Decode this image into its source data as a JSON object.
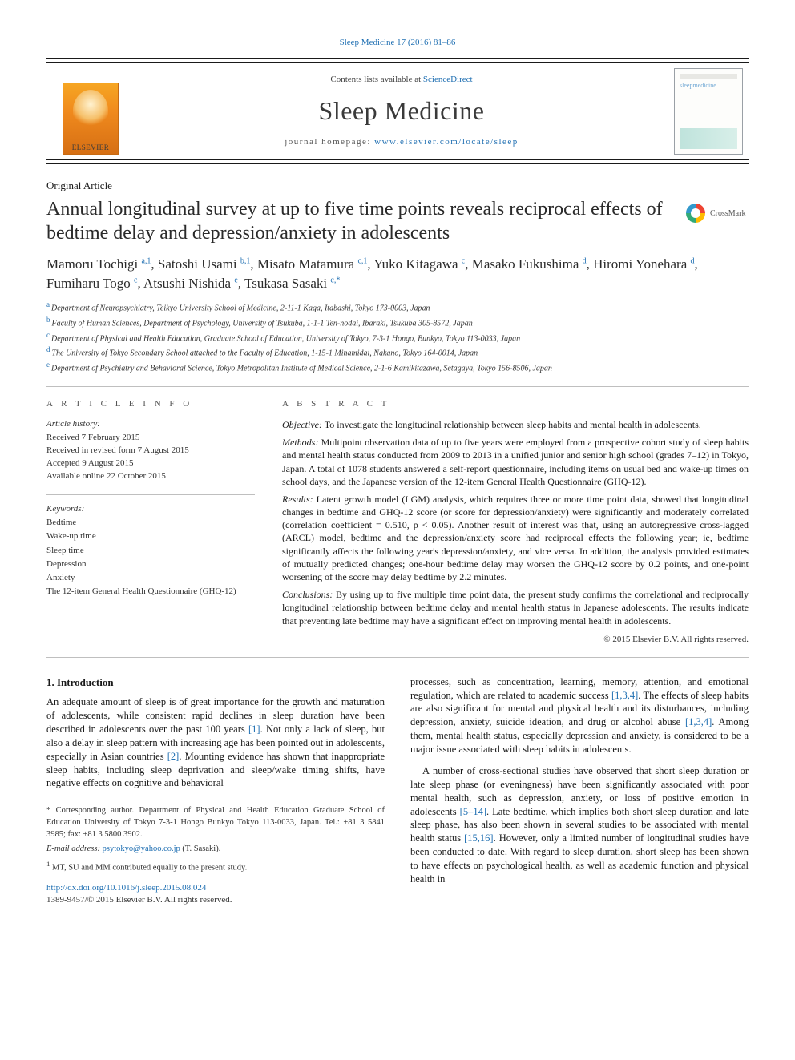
{
  "colors": {
    "link": "#1f6fb2",
    "text": "#1a1a1a",
    "masthead_border": "#1a1a1a",
    "logo_gradient_top": "#f6a623",
    "logo_gradient_bottom": "#d66f14",
    "rule": "#bfbfbf"
  },
  "typography": {
    "body_family": "Times New Roman / Charis serif",
    "title_fontsize_pt": 18,
    "journal_title_fontsize_pt": 24,
    "body_fontsize_pt": 9.5,
    "abstract_fontsize_pt": 9
  },
  "running_head": "Sleep Medicine 17 (2016) 81–86",
  "masthead": {
    "contents_line_pre": "Contents lists available at ",
    "contents_link": "ScienceDirect",
    "journal_title": "Sleep Medicine",
    "homepage_pre": "journal homepage: ",
    "homepage_link": "www.elsevier.com/locate/sleep",
    "publisher_brand": "ELSEVIER",
    "cover_caption": "sleepmedicine"
  },
  "article_type": "Original Article",
  "title": "Annual longitudinal survey at up to five time points reveals reciprocal effects of bedtime delay and depression/anxiety in adolescents",
  "crossmark_label": "CrossMark",
  "authors_html": "Mamoru Tochigi <sup>a,1</sup>, Satoshi Usami <sup>b,1</sup>, Misato Matamura <sup>c,1</sup>, Yuko Kitagawa <sup>c</sup>, Masako Fukushima <sup>d</sup>, Hiromi Yonehara <sup>d</sup>, Fumiharu Togo <sup>c</sup>, Atsushi Nishida <sup>e</sup>, Tsukasa Sasaki <sup>c,*</sup>",
  "affiliations": [
    {
      "label": "a",
      "text": "Department of Neuropsychiatry, Teikyo University School of Medicine, 2-11-1 Kaga, Itabashi, Tokyo 173-0003, Japan"
    },
    {
      "label": "b",
      "text": "Faculty of Human Sciences, Department of Psychology, University of Tsukuba, 1-1-1 Ten-nodai, Ibaraki, Tsukuba 305-8572, Japan"
    },
    {
      "label": "c",
      "text": "Department of Physical and Health Education, Graduate School of Education, University of Tokyo, 7-3-1 Hongo, Bunkyo, Tokyo 113-0033, Japan"
    },
    {
      "label": "d",
      "text": "The University of Tokyo Secondary School attached to the Faculty of Education, 1-15-1 Minamidai, Nakano, Tokyo 164-0014, Japan"
    },
    {
      "label": "e",
      "text": "Department of Psychiatry and Behavioral Science, Tokyo Metropolitan Institute of Medical Science, 2-1-6 Kamikitazawa, Setagaya, Tokyo 156-8506, Japan"
    }
  ],
  "article_info_heading": "A R T I C L E   I N F O",
  "abstract_heading": "A B S T R A C T",
  "history_heading": "Article history:",
  "history_lines": [
    "Received 7 February 2015",
    "Received in revised form 7 August 2015",
    "Accepted 9 August 2015",
    "Available online 22 October 2015"
  ],
  "keywords_heading": "Keywords:",
  "keywords": [
    "Bedtime",
    "Wake-up time",
    "Sleep time",
    "Depression",
    "Anxiety",
    "The 12-item General Health Questionnaire (GHQ-12)"
  ],
  "abstract": {
    "objective_label": "Objective:",
    "objective": " To investigate the longitudinal relationship between sleep habits and mental health in adolescents.",
    "methods_label": "Methods:",
    "methods": " Multipoint observation data of up to five years were employed from a prospective cohort study of sleep habits and mental health status conducted from 2009 to 2013 in a unified junior and senior high school (grades 7–12) in Tokyo, Japan. A total of 1078 students answered a self-report questionnaire, including items on usual bed and wake-up times on school days, and the Japanese version of the 12-item General Health Questionnaire (GHQ-12).",
    "results_label": "Results:",
    "results": " Latent growth model (LGM) analysis, which requires three or more time point data, showed that longitudinal changes in bedtime and GHQ-12 score (or score for depression/anxiety) were significantly and moderately correlated (correlation coefficient = 0.510, p < 0.05). Another result of interest was that, using an autoregressive cross-lagged (ARCL) model, bedtime and the depression/anxiety score had reciprocal effects the following year; ie, bedtime significantly affects the following year's depression/anxiety, and vice versa. In addition, the analysis provided estimates of mutually predicted changes; one-hour bedtime delay may worsen the GHQ-12 score by 0.2 points, and one-point worsening of the score may delay bedtime by 2.2 minutes.",
    "conclusions_label": "Conclusions:",
    "conclusions": " By using up to five multiple time point data, the present study confirms the correlational and reciprocally longitudinal relationship between bedtime delay and mental health status in Japanese adolescents. The results indicate that preventing late bedtime may have a significant effect on improving mental health in adolescents.",
    "copyright": "© 2015 Elsevier B.V. All rights reserved."
  },
  "intro_heading": "1. Introduction",
  "intro_para1_a": "An adequate amount of sleep is of great importance for the growth and maturation of adolescents, while consistent rapid declines in sleep duration have been described in adolescents over the past 100 years ",
  "intro_para1_ref1": "[1]",
  "intro_para1_b": ". Not only a lack of sleep, but also a delay in sleep pattern with increasing age has been pointed out in adolescents, especially in Asian countries ",
  "intro_para1_ref2": "[2]",
  "intro_para1_c": ". Mounting evidence has shown that inappropriate sleep habits, including sleep deprivation and sleep/wake timing shifts, have negative effects on cognitive and behavioral",
  "intro_para2_a": "processes, such as concentration, learning, memory, attention, and emotional regulation, which are related to academic success ",
  "intro_para2_ref1": "[1,3,4]",
  "intro_para2_b": ". The effects of sleep habits are also significant for mental and physical health and its disturbances, including depression, anxiety, suicide ideation, and drug or alcohol abuse ",
  "intro_para2_ref2": "[1,3,4]",
  "intro_para2_c": ". Among them, mental health status, especially depression and anxiety, is considered to be a major issue associated with sleep habits in adolescents.",
  "intro_para3_a": "A number of cross-sectional studies have observed that short sleep duration or late sleep phase (or eveningness) have been significantly associated with poor mental health, such as depression, anxiety, or loss of positive emotion in adolescents ",
  "intro_para3_ref1": "[5–14]",
  "intro_para3_b": ". Late bedtime, which implies both short sleep duration and late sleep phase, has also been shown in several studies to be associated with mental health status ",
  "intro_para3_ref2": "[15,16]",
  "intro_para3_c": ". However, only a limited number of longitudinal studies have been conducted to date. With regard to sleep duration, short sleep has been shown to have effects on psychological health, as well as academic function and physical health in",
  "footnotes": {
    "corr_label": "*",
    "corr_text": " Corresponding author. Department of Physical and Health Education Graduate School of Education University of Tokyo 7-3-1 Hongo Bunkyo Tokyo 113-0033, Japan. Tel.: +81 3 5841 3985; fax: +81 3 5800 3902.",
    "email_label": "E-mail address: ",
    "email_link": "psytokyo@yahoo.co.jp",
    "email_tail": " (T. Sasaki).",
    "equal_label": "1",
    "equal_text": " MT, SU and MM contributed equally to the present study."
  },
  "doi_link": "http://dx.doi.org/10.1016/j.sleep.2015.08.024",
  "issn_line": "1389-9457/© 2015 Elsevier B.V. All rights reserved."
}
